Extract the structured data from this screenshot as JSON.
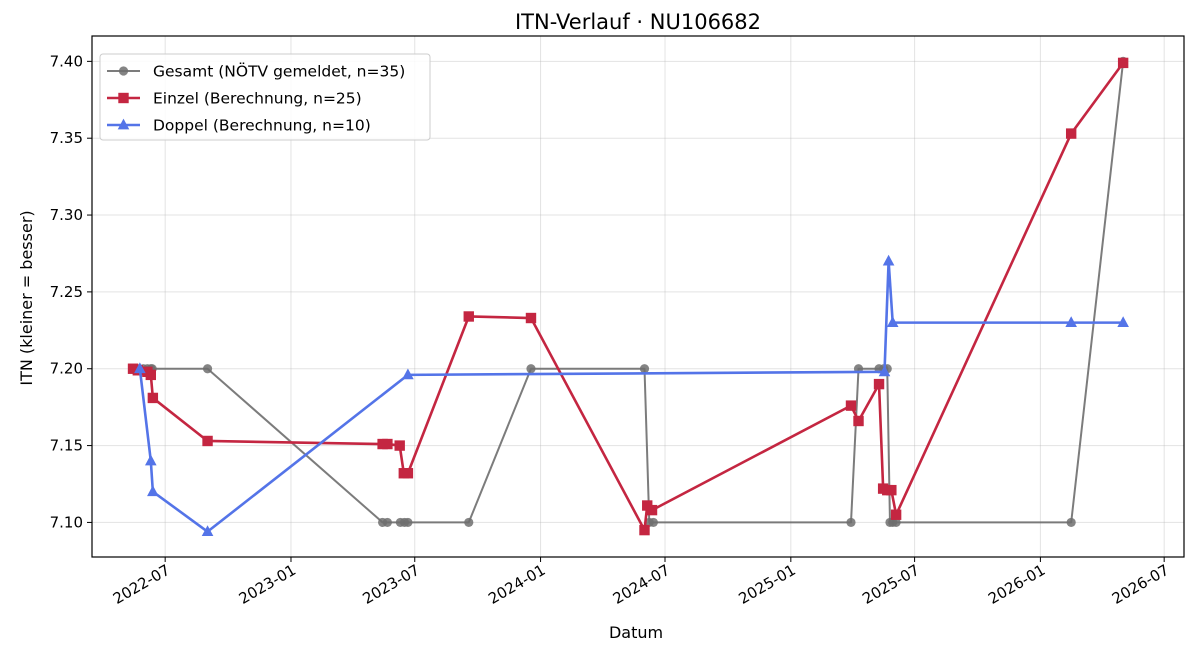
{
  "chart_data": {
    "type": "line",
    "title": "ITN-Verlauf · NU106682",
    "xlabel": "Datum",
    "ylabel": "ITN  (kleiner = besser)",
    "xlim": [
      "2022-03-16",
      "2026-07-30"
    ],
    "ylim": [
      7.0775,
      7.4165
    ],
    "x_ticks": [
      "2022-07-01",
      "2023-01-01",
      "2023-07-01",
      "2024-01-01",
      "2024-07-01",
      "2025-01-01",
      "2025-07-01",
      "2026-01-01",
      "2026-07-01"
    ],
    "x_tick_labels": [
      "2022-07",
      "2023-01",
      "2023-07",
      "2024-01",
      "2024-07",
      "2025-01",
      "2025-07",
      "2026-01",
      "2026-07"
    ],
    "y_ticks": [
      7.1,
      7.15,
      7.2,
      7.25,
      7.3,
      7.35,
      7.4
    ],
    "y_tick_labels": [
      "7.10",
      "7.15",
      "7.20",
      "7.25",
      "7.30",
      "7.35",
      "7.40"
    ],
    "grid": true,
    "legend_position": "top-left",
    "series": [
      {
        "name": "Gesamt (NÖTV gemeldet, n=35)",
        "color": "#6e6e6e",
        "marker": "circle",
        "points": [
          [
            "2022-05-15",
            7.2
          ],
          [
            "2022-05-22",
            7.2
          ],
          [
            "2022-05-30",
            7.2
          ],
          [
            "2022-06-05",
            7.2
          ],
          [
            "2022-06-10",
            7.2
          ],
          [
            "2022-06-12",
            7.2
          ],
          [
            "2022-09-01",
            7.2
          ],
          [
            "2023-05-15",
            7.1
          ],
          [
            "2023-05-22",
            7.1
          ],
          [
            "2023-06-10",
            7.1
          ],
          [
            "2023-06-16",
            7.1
          ],
          [
            "2023-06-21",
            7.1
          ],
          [
            "2023-09-18",
            7.1
          ],
          [
            "2023-12-18",
            7.2
          ],
          [
            "2024-06-01",
            7.2
          ],
          [
            "2024-06-08",
            7.1
          ],
          [
            "2024-06-14",
            7.1
          ],
          [
            "2025-03-30",
            7.1
          ],
          [
            "2025-04-10",
            7.2
          ],
          [
            "2025-05-10",
            7.2
          ],
          [
            "2025-05-17",
            7.2
          ],
          [
            "2025-05-22",
            7.2
          ],
          [
            "2025-05-26",
            7.1
          ],
          [
            "2025-05-30",
            7.1
          ],
          [
            "2025-06-04",
            7.1
          ],
          [
            "2026-02-15",
            7.1
          ],
          [
            "2026-05-02",
            7.4
          ]
        ]
      },
      {
        "name": "Einzel (Berechnung, n=25)",
        "color": "#c42641",
        "marker": "square",
        "points": [
          [
            "2022-05-15",
            7.2
          ],
          [
            "2022-05-22",
            7.199
          ],
          [
            "2022-06-05",
            7.198
          ],
          [
            "2022-06-10",
            7.196
          ],
          [
            "2022-06-13",
            7.181
          ],
          [
            "2022-09-01",
            7.153
          ],
          [
            "2023-05-15",
            7.151
          ],
          [
            "2023-05-22",
            7.151
          ],
          [
            "2023-06-09",
            7.15
          ],
          [
            "2023-06-15",
            7.132
          ],
          [
            "2023-06-21",
            7.132
          ],
          [
            "2023-09-18",
            7.234
          ],
          [
            "2023-12-18",
            7.233
          ],
          [
            "2024-06-01",
            7.095
          ],
          [
            "2024-06-05",
            7.111
          ],
          [
            "2024-06-12",
            7.108
          ],
          [
            "2025-03-30",
            7.176
          ],
          [
            "2025-04-10",
            7.166
          ],
          [
            "2025-05-10",
            7.19
          ],
          [
            "2025-05-16",
            7.122
          ],
          [
            "2025-05-22",
            7.121
          ],
          [
            "2025-05-28",
            7.121
          ],
          [
            "2025-06-04",
            7.105
          ],
          [
            "2026-02-15",
            7.353
          ],
          [
            "2026-05-02",
            7.399
          ]
        ]
      },
      {
        "name": "Doppel (Berechnung, n=10)",
        "color": "#5474e8",
        "marker": "triangle",
        "points": [
          [
            "2022-05-25",
            7.2
          ],
          [
            "2022-06-10",
            7.14
          ],
          [
            "2022-06-13",
            7.12
          ],
          [
            "2022-09-01",
            7.094
          ],
          [
            "2023-06-21",
            7.196
          ],
          [
            "2025-05-18",
            7.198
          ],
          [
            "2025-05-24",
            7.27
          ],
          [
            "2025-05-30",
            7.23
          ],
          [
            "2026-02-15",
            7.23
          ],
          [
            "2026-05-02",
            7.23
          ]
        ]
      }
    ]
  }
}
